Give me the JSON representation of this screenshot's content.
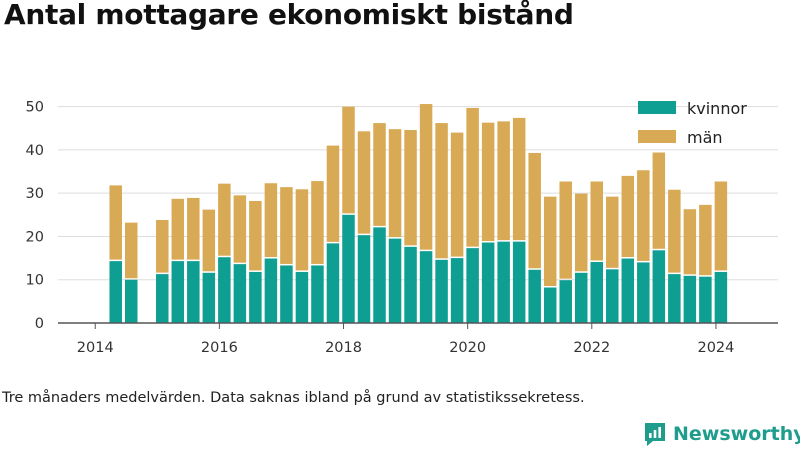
{
  "chart_data": {
    "type": "bar",
    "stacked": true,
    "title": "Antal mottagare ekonomiskt bistånd",
    "note": "Tre månaders medelvärden. Data saknas ibland på grund av statistikssekretess.",
    "brand": "Newsworthy",
    "ylim": [
      0,
      55
    ],
    "yticks": [
      0,
      10,
      20,
      30,
      40,
      50
    ],
    "xlim": [
      2013.4,
      2025.0
    ],
    "xticks": [
      2014,
      2016,
      2018,
      2020,
      2022,
      2024
    ],
    "grid": true,
    "legend_position": "top-right",
    "colors": {
      "kvinnor": "#0f9e92",
      "män": "#d9aa55",
      "axis": "#555555",
      "grid": "#dddddd",
      "text": "#333333"
    },
    "x": [
      2014.33,
      2014.58,
      2015.08,
      2015.33,
      2015.58,
      2015.83,
      2016.08,
      2016.33,
      2016.58,
      2016.83,
      2017.08,
      2017.33,
      2017.58,
      2017.83,
      2018.08,
      2018.33,
      2018.58,
      2018.83,
      2019.08,
      2019.33,
      2019.58,
      2019.83,
      2020.08,
      2020.33,
      2020.58,
      2020.83,
      2021.08,
      2021.33,
      2021.58,
      2021.83,
      2022.08,
      2022.33,
      2022.58,
      2022.83,
      2023.08,
      2023.33,
      2023.58,
      2023.83,
      2024.08
    ],
    "series": [
      {
        "name": "kvinnor",
        "values": [
          14.3,
          10.0,
          11.3,
          14.3,
          14.3,
          11.6,
          15.2,
          13.6,
          11.8,
          14.9,
          13.3,
          11.8,
          13.3,
          18.4,
          25.0,
          20.3,
          22.1,
          19.5,
          17.6,
          16.6,
          14.6,
          15.0,
          17.3,
          18.6,
          18.8,
          18.8,
          12.3,
          8.2,
          9.9,
          11.6,
          14.1,
          12.4,
          14.9,
          14.0,
          16.8,
          11.3,
          10.9,
          10.7,
          11.8
        ]
      },
      {
        "name": "män",
        "values": [
          17.5,
          13.2,
          12.5,
          14.4,
          14.6,
          14.6,
          17.0,
          15.9,
          16.4,
          17.4,
          18.1,
          19.1,
          19.5,
          22.6,
          25.0,
          24.0,
          24.1,
          25.3,
          27.0,
          34.0,
          31.6,
          29.0,
          32.4,
          27.7,
          27.8,
          28.6,
          27.0,
          21.0,
          22.8,
          18.3,
          18.6,
          16.8,
          19.1,
          21.3,
          22.6,
          19.5,
          15.4,
          16.6,
          20.9
        ]
      }
    ]
  }
}
